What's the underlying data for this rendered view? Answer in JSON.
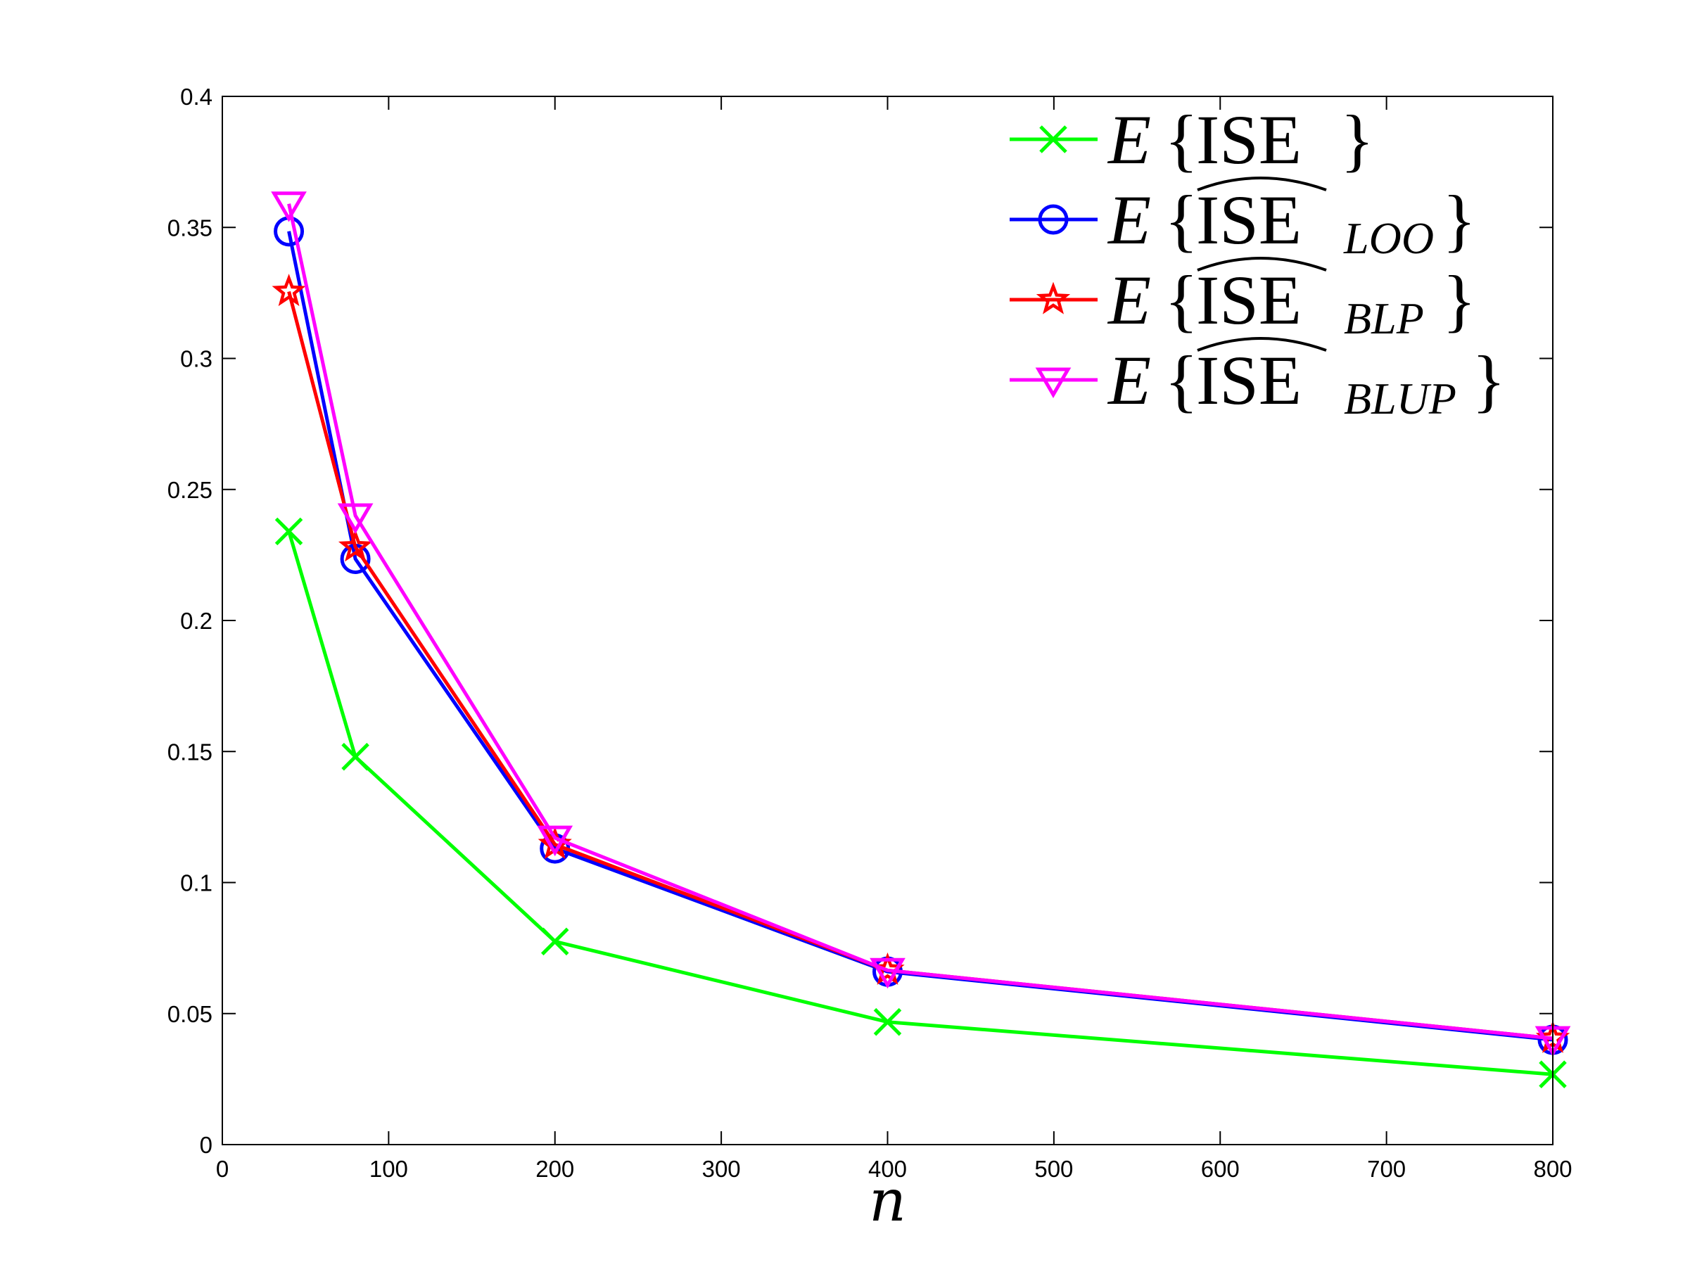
{
  "chart_data": {
    "type": "line",
    "xlabel": "n",
    "ylabel": "",
    "title": "",
    "xlim": [
      0,
      800
    ],
    "ylim": [
      0,
      0.4
    ],
    "xticks": [
      0,
      100,
      200,
      300,
      400,
      500,
      600,
      700,
      800
    ],
    "yticks": [
      0,
      0.05,
      0.1,
      0.15,
      0.2,
      0.25,
      0.3,
      0.35,
      0.4
    ],
    "xtick_labels": [
      "0",
      "100",
      "200",
      "300",
      "400",
      "500",
      "600",
      "700",
      "800"
    ],
    "ytick_labels": [
      "0",
      "0.05",
      "0.1",
      "0.15",
      "0.2",
      "0.25",
      "0.3",
      "0.35",
      "0.4"
    ],
    "grid": false,
    "legend_position": "top-right",
    "x": [
      40,
      80,
      200,
      400,
      800
    ],
    "series": [
      {
        "name": "E{ISE}",
        "legend": {
          "E": "E",
          "open": "{",
          "body": "ISE",
          "hat": false,
          "sub": "",
          "close": "}"
        },
        "color": "#00ff00",
        "marker": "x",
        "values": [
          0.234,
          0.148,
          0.0775,
          0.0468,
          0.0268
        ]
      },
      {
        "name": "E{ISE-hat LOO}",
        "legend": {
          "E": "E",
          "open": "{",
          "body": "ISE",
          "hat": true,
          "sub": "LOO",
          "close": "}"
        },
        "color": "#0000ff",
        "marker": "circle",
        "values": [
          0.3485,
          0.2235,
          0.113,
          0.066,
          0.04
        ]
      },
      {
        "name": "E{ISE-hat BLP}",
        "legend": {
          "E": "E",
          "open": "{",
          "body": "ISE",
          "hat": true,
          "sub": "BLP",
          "close": "}"
        },
        "color": "#ff0000",
        "marker": "star",
        "values": [
          0.3255,
          0.228,
          0.1145,
          0.0665,
          0.0405
        ]
      },
      {
        "name": "E{ISE-hat BLUP}",
        "legend": {
          "E": "E",
          "open": "{",
          "body": "ISE",
          "hat": true,
          "sub": "BLUP",
          "close": "}"
        },
        "color": "#ff00ff",
        "marker": "triangle-down",
        "values": [
          0.359,
          0.24,
          0.117,
          0.0665,
          0.0405
        ]
      }
    ]
  }
}
